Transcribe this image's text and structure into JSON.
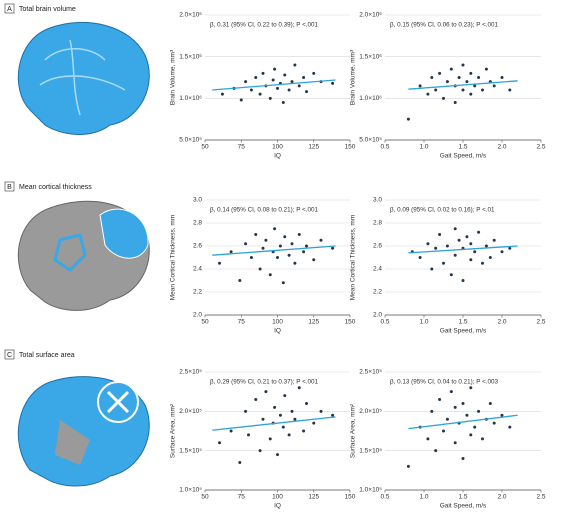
{
  "panels": [
    {
      "letter": "A",
      "title": "Total brain volume"
    },
    {
      "letter": "B",
      "title": "Mean cortical thickness"
    },
    {
      "letter": "C",
      "title": "Total surface area"
    }
  ],
  "chart_data": [
    {
      "type": "scatter",
      "annotation": "β, 0.31 (95% CI, 0.22 to 0.39); P <.001",
      "x_label": "IQ",
      "y_label": "Brain Volume, mm³",
      "x": [
        62,
        70,
        75,
        78,
        82,
        85,
        88,
        90,
        92,
        95,
        97,
        98,
        100,
        102,
        104,
        105,
        108,
        110,
        112,
        115,
        118,
        120,
        125,
        130,
        138
      ],
      "y": [
        1050000,
        1120000,
        980000,
        1200000,
        1100000,
        1250000,
        1050000,
        1300000,
        1150000,
        1000000,
        1220000,
        1350000,
        1120000,
        1180000,
        950000,
        1280000,
        1100000,
        1200000,
        1400000,
        1150000,
        1250000,
        1080000,
        1300000,
        1200000,
        1180000
      ],
      "fit": {
        "x": [
          55,
          140
        ],
        "y": [
          1100000,
          1220000
        ]
      },
      "color": "#24374a",
      "fit_color": "#2ba3dc",
      "grid": true,
      "xlim": [
        50,
        150
      ],
      "xticks": [
        50,
        75,
        100,
        125,
        150
      ],
      "ylim": [
        500000,
        2000000
      ],
      "yticks": [
        {
          "value": 500000,
          "label": "5.0×10⁵"
        },
        {
          "value": 1000000,
          "label": "1.0×10⁶"
        },
        {
          "value": 1500000,
          "label": "1.5×10⁶"
        },
        {
          "value": 2000000,
          "label": "2.0×10⁶"
        }
      ]
    },
    {
      "type": "scatter",
      "annotation": "β, 0.15 (95% CI, 0.06 to 0.23); P <.001",
      "x_label": "Gait Speed, m/s",
      "y_label": "Brain Volume, mm³",
      "x": [
        0.8,
        0.95,
        1.05,
        1.1,
        1.15,
        1.2,
        1.25,
        1.3,
        1.35,
        1.4,
        1.4,
        1.45,
        1.5,
        1.5,
        1.55,
        1.6,
        1.6,
        1.65,
        1.7,
        1.75,
        1.8,
        1.85,
        1.9,
        2.0,
        2.1
      ],
      "y": [
        750000,
        1150000,
        1050000,
        1250000,
        1100000,
        1300000,
        1000000,
        1200000,
        1350000,
        1150000,
        950000,
        1250000,
        1100000,
        1400000,
        1200000,
        1050000,
        1300000,
        1150000,
        1250000,
        1100000,
        1350000,
        1200000,
        1150000,
        1250000,
        1100000
      ],
      "fit": {
        "x": [
          0.8,
          2.2
        ],
        "y": [
          1110000,
          1210000
        ]
      },
      "color": "#24374a",
      "fit_color": "#2ba3dc",
      "grid": true,
      "xlim": [
        0.5,
        2.5
      ],
      "xticks": [
        0.5,
        {
          "value": 1,
          "label": "1.0"
        },
        1.5,
        {
          "value": 2,
          "label": "2.0"
        },
        2.5
      ],
      "ylim": [
        500000,
        2000000
      ],
      "yticks": [
        {
          "value": 500000,
          "label": "5.0×10⁵"
        },
        {
          "value": 1000000,
          "label": "1.0×10⁶"
        },
        {
          "value": 1500000,
          "label": "1.5×10⁶"
        },
        {
          "value": 2000000,
          "label": "2.0×10⁶"
        }
      ]
    },
    {
      "type": "scatter",
      "annotation": "β, 0.14 (95% CI, 0.08 to 0.21); P <.001",
      "x_label": "IQ",
      "y_label": "Mean Cortical Thickness, mm",
      "x": [
        60,
        68,
        74,
        78,
        82,
        85,
        88,
        90,
        92,
        95,
        97,
        98,
        100,
        102,
        104,
        105,
        108,
        110,
        112,
        115,
        118,
        120,
        125,
        130,
        138
      ],
      "y": [
        2.45,
        2.55,
        2.3,
        2.62,
        2.5,
        2.7,
        2.4,
        2.58,
        2.65,
        2.35,
        2.55,
        2.75,
        2.5,
        2.6,
        2.28,
        2.68,
        2.52,
        2.62,
        2.45,
        2.7,
        2.55,
        2.6,
        2.48,
        2.65,
        2.58
      ],
      "fit": {
        "x": [
          55,
          140
        ],
        "y": [
          2.52,
          2.6
        ]
      },
      "color": "#24374a",
      "fit_color": "#2ba3dc",
      "grid": true,
      "xlim": [
        50,
        150
      ],
      "xticks": [
        50,
        75,
        100,
        125,
        150
      ],
      "ylim": [
        2,
        3
      ],
      "yticks": [
        {
          "value": 2,
          "label": "2.0"
        },
        2.2,
        2.4,
        2.6,
        2.8,
        {
          "value": 3,
          "label": "3.0"
        }
      ]
    },
    {
      "type": "scatter",
      "annotation": "β, 0.09 (95% CI, 0.02 to 0.16); P <.01",
      "x_label": "Gait Speed, m/s",
      "y_label": "Mean Cortical Thickness, mm",
      "x": [
        0.85,
        0.95,
        1.05,
        1.1,
        1.15,
        1.2,
        1.25,
        1.3,
        1.35,
        1.4,
        1.4,
        1.45,
        1.5,
        1.5,
        1.55,
        1.6,
        1.6,
        1.65,
        1.7,
        1.75,
        1.8,
        1.85,
        1.9,
        2.0,
        2.1
      ],
      "y": [
        2.55,
        2.5,
        2.62,
        2.4,
        2.58,
        2.7,
        2.45,
        2.6,
        2.35,
        2.75,
        2.52,
        2.65,
        2.3,
        2.58,
        2.68,
        2.48,
        2.62,
        2.55,
        2.72,
        2.45,
        2.6,
        2.5,
        2.65,
        2.55,
        2.58
      ],
      "fit": {
        "x": [
          0.8,
          2.2
        ],
        "y": [
          2.54,
          2.6
        ]
      },
      "color": "#24374a",
      "fit_color": "#2ba3dc",
      "grid": true,
      "xlim": [
        0.5,
        2.5
      ],
      "xticks": [
        0.5,
        {
          "value": 1,
          "label": "1.0"
        },
        1.5,
        {
          "value": 2,
          "label": "2.0"
        },
        2.5
      ],
      "ylim": [
        2,
        3
      ],
      "yticks": [
        {
          "value": 2,
          "label": "2.0"
        },
        2.2,
        2.4,
        2.6,
        2.8,
        {
          "value": 3,
          "label": "3.0"
        }
      ]
    },
    {
      "type": "scatter",
      "annotation": "β, 0.29 (95% CI, 0.21 to 0.37); P <.001",
      "x_label": "IQ",
      "y_label": "Surface Area, mm²",
      "x": [
        60,
        68,
        74,
        78,
        80,
        85,
        88,
        90,
        92,
        95,
        97,
        98,
        100,
        102,
        104,
        105,
        108,
        110,
        112,
        115,
        118,
        120,
        125,
        130,
        138
      ],
      "y": [
        160000,
        175000,
        135000,
        200000,
        170000,
        215000,
        150000,
        190000,
        225000,
        165000,
        185000,
        205000,
        145000,
        195000,
        180000,
        220000,
        170000,
        200000,
        190000,
        230000,
        175000,
        210000,
        185000,
        200000,
        195000
      ],
      "fit": {
        "x": [
          55,
          140
        ],
        "y": [
          176000,
          193000
        ]
      },
      "color": "#24374a",
      "fit_color": "#2ba3dc",
      "grid": true,
      "xlim": [
        50,
        150
      ],
      "xticks": [
        50,
        75,
        100,
        125,
        150
      ],
      "ylim": [
        100000,
        250000
      ],
      "yticks": [
        {
          "value": 100000,
          "label": "1.0×10⁵"
        },
        {
          "value": 150000,
          "label": "1.5×10⁵"
        },
        {
          "value": 200000,
          "label": "2.0×10⁵"
        },
        {
          "value": 250000,
          "label": "2.5×10⁵"
        }
      ]
    },
    {
      "type": "scatter",
      "annotation": "β, 0.13 (95% CI, 0.04 to 0.21); P <.003",
      "x_label": "Gait Speed, m/s",
      "y_label": "Surface Area, mm²",
      "x": [
        0.8,
        0.95,
        1.05,
        1.1,
        1.15,
        1.2,
        1.25,
        1.3,
        1.35,
        1.4,
        1.4,
        1.45,
        1.5,
        1.5,
        1.55,
        1.6,
        1.6,
        1.65,
        1.7,
        1.75,
        1.8,
        1.85,
        1.9,
        2.0,
        2.1
      ],
      "y": [
        130000,
        180000,
        165000,
        200000,
        150000,
        215000,
        175000,
        190000,
        225000,
        160000,
        205000,
        185000,
        140000,
        210000,
        195000,
        170000,
        230000,
        180000,
        200000,
        165000,
        190000,
        210000,
        185000,
        195000,
        180000
      ],
      "fit": {
        "x": [
          0.8,
          2.2
        ],
        "y": [
          178000,
          195000
        ]
      },
      "color": "#24374a",
      "fit_color": "#2ba3dc",
      "grid": true,
      "xlim": [
        0.5,
        2.5
      ],
      "xticks": [
        0.5,
        {
          "value": 1,
          "label": "1.0"
        },
        1.5,
        {
          "value": 2,
          "label": "2.0"
        },
        2.5
      ],
      "ylim": [
        100000,
        250000
      ],
      "yticks": [
        {
          "value": 100000,
          "label": "1.0×10⁵"
        },
        {
          "value": 150000,
          "label": "1.5×10⁵"
        },
        {
          "value": 200000,
          "label": "2.0×10⁵"
        },
        {
          "value": 250000,
          "label": "2.5×10⁵"
        }
      ]
    }
  ]
}
